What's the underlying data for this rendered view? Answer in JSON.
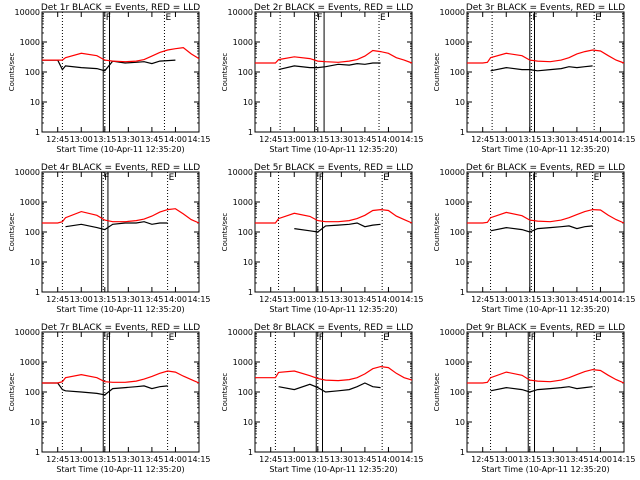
{
  "figure": {
    "ylabel": "Counts/sec",
    "xlabel_prefix": "Start Time",
    "start_time": "10-Apr-11 12:35:20",
    "x_ticks": [
      "12:45",
      "13:00",
      "13:15",
      "13:30",
      "13:45",
      "14:00",
      "14:15"
    ],
    "y_ticks": [
      "1",
      "10",
      "100",
      "1000",
      "10000"
    ]
  },
  "colors": {
    "events": "#000000",
    "lld": "#ff0000"
  },
  "chart_data": [
    {
      "type": "line",
      "title": "Det 1r BLACK = Events, RED = LLD",
      "xlim": [
        "12:35",
        "14:15"
      ],
      "ylim": [
        1,
        10000
      ],
      "yscale": "log",
      "x": [
        "12:35",
        "12:45",
        "12:48",
        "12:50",
        "13:00",
        "13:10",
        "13:15",
        "13:20",
        "13:28",
        "13:35",
        "13:40",
        "13:45",
        "13:50",
        "13:55",
        "14:00",
        "14:05",
        "14:10",
        "14:15"
      ],
      "series": [
        {
          "name": "BLACK = Events",
          "values": [
            250,
            250,
            120,
            160,
            140,
            130,
            110,
            230,
            200,
            210,
            220,
            190,
            230,
            240,
            250,
            null,
            null,
            null
          ]
        },
        {
          "name": "RED = LLD",
          "values": [
            250,
            250,
            250,
            300,
            420,
            350,
            250,
            230,
            220,
            230,
            260,
            340,
            450,
            540,
            600,
            650,
            400,
            280
          ]
        }
      ],
      "markers": [
        {
          "time": "12:48",
          "label": ""
        },
        {
          "time": "13:15",
          "label": "F"
        },
        {
          "time": "13:53",
          "label": "E"
        }
      ],
      "attenuator_lines": [
        "13:14",
        "13:18"
      ]
    },
    {
      "type": "line",
      "title": "Det 2r BLACK = Events, RED = LLD",
      "xlim": [
        "12:35",
        "14:15"
      ],
      "ylim": [
        1,
        10000
      ],
      "yscale": "log",
      "x": [
        "12:35",
        "12:45",
        "12:48",
        "12:50",
        "13:00",
        "13:10",
        "13:15",
        "13:20",
        "13:28",
        "13:35",
        "13:40",
        "13:45",
        "13:50",
        "13:55",
        "14:00",
        "14:05",
        "14:10",
        "14:15"
      ],
      "series": [
        {
          "name": "BLACK = Events",
          "values": [
            null,
            null,
            null,
            120,
            160,
            140,
            140,
            150,
            180,
            170,
            190,
            180,
            200,
            200,
            null,
            null,
            null,
            null
          ]
        },
        {
          "name": "RED = LLD",
          "values": [
            200,
            200,
            200,
            260,
            320,
            280,
            230,
            220,
            210,
            230,
            260,
            340,
            520,
            480,
            420,
            300,
            250,
            200
          ]
        }
      ],
      "markers": [
        {
          "time": "12:51",
          "label": ""
        },
        {
          "time": "13:14",
          "label": "F"
        },
        {
          "time": "13:54",
          "label": "E"
        }
      ],
      "attenuator_lines": [
        "13:13",
        "13:19"
      ]
    },
    {
      "type": "line",
      "title": "Det 3r BLACK = Events, RED = LLD",
      "xlim": [
        "12:35",
        "14:15"
      ],
      "ylim": [
        1,
        10000
      ],
      "yscale": "log",
      "x": [
        "12:35",
        "12:45",
        "12:48",
        "12:50",
        "13:00",
        "13:10",
        "13:15",
        "13:20",
        "13:28",
        "13:35",
        "13:40",
        "13:45",
        "13:50",
        "13:55",
        "14:00",
        "14:05",
        "14:10",
        "14:15"
      ],
      "series": [
        {
          "name": "BLACK = Events",
          "values": [
            null,
            null,
            null,
            110,
            140,
            120,
            120,
            110,
            120,
            130,
            150,
            140,
            150,
            160,
            null,
            null,
            null,
            null
          ]
        },
        {
          "name": "RED = LLD",
          "values": [
            200,
            200,
            210,
            300,
            420,
            350,
            250,
            230,
            220,
            250,
            300,
            400,
            480,
            540,
            500,
            350,
            250,
            200
          ]
        }
      ],
      "markers": [
        {
          "time": "12:51",
          "label": ""
        },
        {
          "time": "13:16",
          "label": "F"
        },
        {
          "time": "13:56",
          "label": "E"
        }
      ],
      "attenuator_lines": [
        "13:15",
        "13:18"
      ]
    },
    {
      "type": "line",
      "title": "Det 4r BLACK = Events, RED = LLD",
      "xlim": [
        "12:35",
        "14:15"
      ],
      "ylim": [
        1,
        10000
      ],
      "yscale": "log",
      "x": [
        "12:35",
        "12:45",
        "12:48",
        "12:50",
        "13:00",
        "13:10",
        "13:15",
        "13:20",
        "13:28",
        "13:35",
        "13:40",
        "13:45",
        "13:50",
        "13:55",
        "14:00",
        "14:05",
        "14:10",
        "14:15"
      ],
      "series": [
        {
          "name": "BLACK = Events",
          "values": [
            null,
            null,
            null,
            150,
            180,
            140,
            120,
            180,
            200,
            200,
            220,
            180,
            200,
            200,
            null,
            null,
            null,
            null
          ]
        },
        {
          "name": "RED = LLD",
          "values": [
            200,
            200,
            220,
            300,
            480,
            360,
            250,
            220,
            220,
            240,
            270,
            340,
            460,
            560,
            600,
            400,
            260,
            200
          ]
        }
      ],
      "markers": [
        {
          "time": "12:48",
          "label": ""
        },
        {
          "time": "13:14",
          "label": "F"
        },
        {
          "time": "13:55",
          "label": "E"
        }
      ],
      "attenuator_lines": [
        "13:13",
        "13:17"
      ]
    },
    {
      "type": "line",
      "title": "Det 5r BLACK = Events, RED = LLD",
      "xlim": [
        "12:35",
        "14:15"
      ],
      "ylim": [
        1,
        10000
      ],
      "yscale": "log",
      "x": [
        "12:35",
        "12:45",
        "12:48",
        "12:50",
        "13:00",
        "13:10",
        "13:15",
        "13:20",
        "13:28",
        "13:35",
        "13:40",
        "13:45",
        "13:50",
        "13:55",
        "14:00",
        "14:05",
        "14:10",
        "14:15"
      ],
      "series": [
        {
          "name": "BLACK = Events",
          "values": [
            null,
            null,
            null,
            null,
            130,
            110,
            100,
            160,
            170,
            180,
            200,
            150,
            170,
            180,
            null,
            null,
            null,
            null
          ]
        },
        {
          "name": "RED = LLD",
          "values": [
            200,
            200,
            200,
            280,
            420,
            330,
            240,
            220,
            220,
            240,
            280,
            360,
            520,
            560,
            520,
            340,
            260,
            200
          ]
        }
      ],
      "markers": [
        {
          "time": "12:50",
          "label": ""
        },
        {
          "time": "13:15",
          "label": "F"
        },
        {
          "time": "13:56",
          "label": "E"
        }
      ],
      "attenuator_lines": [
        "13:14",
        "13:18"
      ]
    },
    {
      "type": "line",
      "title": "Det 6r BLACK = Events, RED = LLD",
      "xlim": [
        "12:35",
        "14:15"
      ],
      "ylim": [
        1,
        10000
      ],
      "yscale": "log",
      "x": [
        "12:35",
        "12:45",
        "12:48",
        "12:50",
        "13:00",
        "13:10",
        "13:15",
        "13:20",
        "13:28",
        "13:35",
        "13:40",
        "13:45",
        "13:50",
        "13:55",
        "14:00",
        "14:05",
        "14:10",
        "14:15"
      ],
      "series": [
        {
          "name": "BLACK = Events",
          "values": [
            null,
            null,
            null,
            110,
            140,
            120,
            100,
            130,
            140,
            150,
            160,
            130,
            150,
            160,
            null,
            null,
            null,
            null
          ]
        },
        {
          "name": "RED = LLD",
          "values": [
            200,
            200,
            210,
            300,
            450,
            350,
            250,
            230,
            220,
            250,
            300,
            380,
            480,
            560,
            540,
            360,
            260,
            200
          ]
        }
      ],
      "markers": [
        {
          "time": "12:50",
          "label": ""
        },
        {
          "time": "13:16",
          "label": "F"
        },
        {
          "time": "13:55",
          "label": "E"
        }
      ],
      "attenuator_lines": [
        "13:15",
        "13:18"
      ]
    },
    {
      "type": "line",
      "title": "Det 7r BLACK = Events, RED = LLD",
      "xlim": [
        "12:35",
        "14:15"
      ],
      "ylim": [
        1,
        10000
      ],
      "yscale": "log",
      "x": [
        "12:35",
        "12:45",
        "12:48",
        "12:50",
        "13:00",
        "13:10",
        "13:15",
        "13:20",
        "13:28",
        "13:35",
        "13:40",
        "13:45",
        "13:50",
        "13:55",
        "14:00",
        "14:05",
        "14:10",
        "14:15"
      ],
      "series": [
        {
          "name": "BLACK = Events",
          "values": [
            200,
            200,
            120,
            110,
            100,
            90,
            80,
            130,
            140,
            150,
            160,
            130,
            150,
            160,
            null,
            null,
            null,
            null
          ]
        },
        {
          "name": "RED = LLD",
          "values": [
            200,
            200,
            220,
            300,
            380,
            300,
            220,
            210,
            210,
            230,
            270,
            330,
            420,
            500,
            460,
            340,
            260,
            200
          ]
        }
      ],
      "markers": [
        {
          "time": "12:48",
          "label": ""
        },
        {
          "time": "13:15",
          "label": "F"
        },
        {
          "time": "13:55",
          "label": "E"
        }
      ],
      "attenuator_lines": [
        "13:14",
        "13:18"
      ]
    },
    {
      "type": "line",
      "title": "Det 8r BLACK = Events, RED = LLD",
      "xlim": [
        "12:35",
        "14:15"
      ],
      "ylim": [
        1,
        10000
      ],
      "yscale": "log",
      "x": [
        "12:35",
        "12:45",
        "12:48",
        "12:50",
        "13:00",
        "13:10",
        "13:15",
        "13:20",
        "13:28",
        "13:35",
        "13:40",
        "13:45",
        "13:50",
        "13:55",
        "14:00",
        "14:05",
        "14:10",
        "14:15"
      ],
      "series": [
        {
          "name": "BLACK = Events",
          "values": [
            null,
            null,
            null,
            150,
            120,
            180,
            140,
            100,
            110,
            120,
            150,
            200,
            150,
            140,
            null,
            null,
            null,
            null
          ]
        },
        {
          "name": "RED = LLD",
          "values": [
            300,
            300,
            300,
            450,
            500,
            350,
            280,
            250,
            240,
            260,
            300,
            400,
            600,
            700,
            650,
            420,
            300,
            250
          ]
        }
      ],
      "markers": [
        {
          "time": "12:48",
          "label": ""
        },
        {
          "time": "13:15",
          "label": "F"
        },
        {
          "time": "13:56",
          "label": "E"
        }
      ],
      "attenuator_lines": [
        "13:14",
        "13:18"
      ]
    },
    {
      "type": "line",
      "title": "Det 9r BLACK = Events, RED = LLD",
      "xlim": [
        "12:35",
        "14:15"
      ],
      "ylim": [
        1,
        10000
      ],
      "yscale": "log",
      "x": [
        "12:35",
        "12:45",
        "12:48",
        "12:50",
        "13:00",
        "13:10",
        "13:15",
        "13:20",
        "13:28",
        "13:35",
        "13:40",
        "13:45",
        "13:50",
        "13:55",
        "14:00",
        "14:05",
        "14:10",
        "14:15"
      ],
      "series": [
        {
          "name": "BLACK = Events",
          "values": [
            null,
            null,
            null,
            110,
            140,
            120,
            100,
            120,
            130,
            140,
            150,
            130,
            140,
            150,
            null,
            null,
            null,
            null
          ]
        },
        {
          "name": "RED = LLD",
          "values": [
            200,
            200,
            210,
            300,
            460,
            360,
            250,
            230,
            220,
            250,
            300,
            380,
            480,
            560,
            520,
            360,
            260,
            200
          ]
        }
      ],
      "markers": [
        {
          "time": "12:50",
          "label": ""
        },
        {
          "time": "13:15",
          "label": "F"
        },
        {
          "time": "13:56",
          "label": "E"
        }
      ],
      "attenuator_lines": [
        "13:14",
        "13:18"
      ]
    }
  ]
}
